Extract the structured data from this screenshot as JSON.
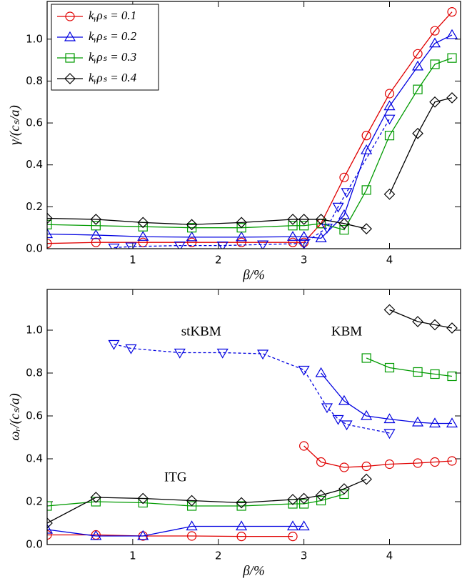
{
  "chart_data": [
    {
      "type": "line",
      "xlabel": "β/%",
      "ylabel": "γ/(cₛ/a)",
      "xlim": [
        0,
        4.83
      ],
      "xticks": [
        1,
        2,
        3,
        4
      ],
      "ylim": [
        0,
        1.18
      ],
      "yticks": [
        {
          "value": 0,
          "label": "0.0"
        },
        {
          "value": 0.2,
          "label": "0.2"
        },
        {
          "value": 0.4,
          "label": "0.4"
        },
        {
          "value": 0.6,
          "label": "0.6"
        },
        {
          "value": 0.8,
          "label": "0.8"
        },
        {
          "value": 1,
          "label": "1.0"
        }
      ],
      "legend": "upper left",
      "series": [
        {
          "name": "kᵧρₛ = 0.1",
          "color": "#e00000",
          "marker": "circle",
          "x": [
            0,
            0.57,
            1.12,
            1.69,
            2.27,
            2.87,
            3.0,
            3.2,
            3.47,
            3.73,
            4.0,
            4.33,
            4.53,
            4.73
          ],
          "values": [
            0.025,
            0.03,
            0.03,
            0.03,
            0.03,
            0.03,
            0.03,
            0.12,
            0.34,
            0.54,
            0.74,
            0.93,
            1.04,
            1.13
          ]
        },
        {
          "name": "kᵧρₛ = 0.2",
          "color": "#0000e0",
          "marker": "triangle-up",
          "x": [
            0,
            0.57,
            1.12,
            1.69,
            2.27,
            2.87,
            3.0,
            3.2,
            3.47,
            3.73,
            4.0,
            4.33,
            4.53,
            4.73
          ],
          "values": [
            0.07,
            0.065,
            0.057,
            0.055,
            0.055,
            0.057,
            0.057,
            0.05,
            0.16,
            0.47,
            0.68,
            0.87,
            0.98,
            1.02
          ]
        },
        {
          "name": "kᵧρₛ = 0.3",
          "color": "#009a00",
          "marker": "square",
          "x": [
            0,
            0.57,
            1.12,
            1.69,
            2.27,
            2.87,
            3.0,
            3.2,
            3.47,
            3.73,
            4.0,
            4.33,
            4.53,
            4.73
          ],
          "values": [
            0.115,
            0.11,
            0.105,
            0.1,
            0.1,
            0.11,
            0.11,
            0.12,
            0.09,
            0.28,
            0.54,
            0.76,
            0.88,
            0.91
          ]
        },
        {
          "name": "kᵧρₛ = 0.4",
          "color": "#000000",
          "marker": "diamond",
          "x": [
            0,
            0.57,
            1.12,
            1.69,
            2.27,
            2.87,
            3.0,
            3.2,
            3.47,
            3.73,
            3.87,
            4.0,
            4.33,
            4.53,
            4.73
          ],
          "values": [
            0.145,
            0.14,
            0.125,
            0.115,
            0.125,
            0.14,
            0.14,
            0.14,
            0.12,
            0.095,
            null,
            0.26,
            0.55,
            0.7,
            0.72
          ]
        },
        {
          "color": "#0000e0",
          "marker": "triangle-down",
          "dashed": true,
          "x": [
            0.78,
            0.98,
            1.55,
            2.05,
            2.52,
            3.0,
            3.27,
            3.4,
            3.5,
            4.0
          ],
          "values": [
            0.005,
            0.01,
            0.015,
            0.015,
            0.02,
            0.025,
            0.1,
            0.2,
            0.27,
            0.62
          ]
        }
      ]
    },
    {
      "type": "line",
      "xlabel": "β/%",
      "ylabel": "ωᵣ/(cₛ/a)",
      "xlim": [
        0,
        4.83
      ],
      "xticks": [
        1,
        2,
        3,
        4
      ],
      "ylim": [
        0,
        1.19
      ],
      "yticks": [
        {
          "value": 0,
          "label": "0.0"
        },
        {
          "value": 0.2,
          "label": "0.2"
        },
        {
          "value": 0.4,
          "label": "0.4"
        },
        {
          "value": 0.6,
          "label": "0.6"
        },
        {
          "value": 0.8,
          "label": "0.8"
        },
        {
          "value": 1,
          "label": "1.0"
        }
      ],
      "annotations": [
        {
          "text": "stKBM",
          "x": 1.8,
          "y": 0.99
        },
        {
          "text": "KBM",
          "x": 3.5,
          "y": 0.99
        },
        {
          "text": "ITG",
          "x": 1.5,
          "y": 0.31
        }
      ],
      "series": [
        {
          "color": "#e00000",
          "marker": "circle",
          "x": [
            0,
            0.57,
            1.12,
            1.69,
            2.27,
            2.87,
            2.94,
            3.0,
            3.2,
            3.47,
            3.73,
            4.0,
            4.33,
            4.53,
            4.73
          ],
          "values": [
            0.045,
            0.045,
            0.04,
            0.04,
            0.038,
            0.038,
            null,
            0.46,
            0.385,
            0.36,
            0.365,
            0.375,
            0.38,
            0.385,
            0.39
          ]
        },
        {
          "color": "#0000e0",
          "marker": "triangle-up",
          "x": [
            0,
            0.57,
            1.12,
            1.69,
            2.27,
            2.87,
            3.0,
            3.1,
            3.2,
            3.47,
            3.73,
            4.0,
            4.33,
            4.53,
            4.73
          ],
          "values": [
            0.07,
            0.04,
            0.04,
            0.085,
            0.085,
            0.085,
            0.085,
            null,
            0.8,
            0.67,
            0.6,
            0.585,
            0.57,
            0.565,
            0.565
          ]
        },
        {
          "color": "#009a00",
          "marker": "square",
          "x": [
            0,
            0.57,
            1.12,
            1.69,
            2.27,
            2.87,
            3.0,
            3.2,
            3.47,
            3.6,
            3.73,
            4.0,
            4.33,
            4.53,
            4.73
          ],
          "values": [
            0.18,
            0.2,
            0.195,
            0.18,
            0.18,
            0.19,
            0.19,
            0.205,
            0.235,
            null,
            0.87,
            0.825,
            0.805,
            0.795,
            0.785
          ]
        },
        {
          "color": "#000000",
          "marker": "diamond",
          "x": [
            0,
            0.57,
            1.12,
            1.69,
            2.27,
            2.87,
            3.0,
            3.2,
            3.47,
            3.73,
            3.87,
            4.0,
            4.33,
            4.53,
            4.73
          ],
          "values": [
            0.1,
            0.22,
            0.215,
            0.205,
            0.195,
            0.21,
            0.215,
            0.23,
            0.26,
            0.305,
            null,
            1.095,
            1.04,
            1.025,
            1.01
          ]
        },
        {
          "color": "#0000e0",
          "marker": "triangle-down",
          "dashed": true,
          "x": [
            0.78,
            0.98,
            1.55,
            2.05,
            2.52,
            3.0,
            3.27,
            3.4,
            3.5,
            4.0
          ],
          "values": [
            0.935,
            0.915,
            0.895,
            0.895,
            0.89,
            0.815,
            0.64,
            0.585,
            0.56,
            0.52
          ]
        }
      ]
    }
  ]
}
